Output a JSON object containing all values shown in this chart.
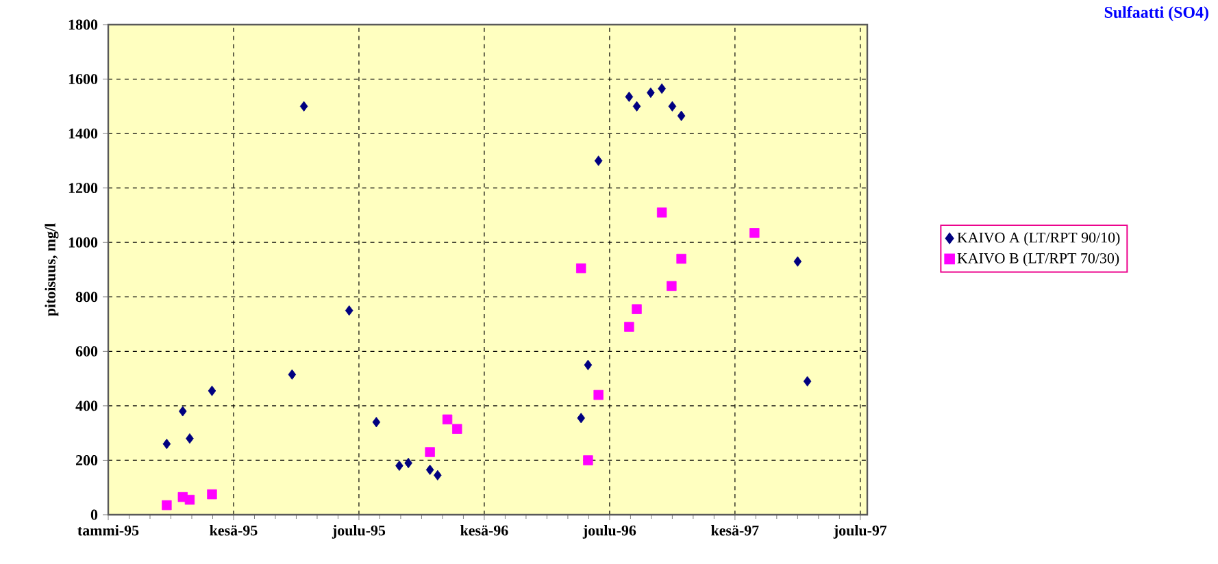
{
  "chart_data": {
    "type": "scatter",
    "title": "Sulfaatti (SO4)",
    "ylabel": "pitoisuus, mg/l",
    "xlim": [
      "1995-01-01",
      "1997-12-26"
    ],
    "xticks": [
      {
        "value": "1995-01-01",
        "label": "tammi-95"
      },
      {
        "value": "1995-06-30",
        "label": "kesä-95"
      },
      {
        "value": "1995-12-27",
        "label": "joulu-95"
      },
      {
        "value": "1996-06-24",
        "label": "kesä-96"
      },
      {
        "value": "1996-12-21",
        "label": "joulu-96"
      },
      {
        "value": "1997-06-19",
        "label": "kesä-97"
      },
      {
        "value": "1997-12-16",
        "label": "joulu-97"
      }
    ],
    "ylim": [
      0,
      1800
    ],
    "yticks": [
      0,
      200,
      400,
      600,
      800,
      1000,
      1200,
      1400,
      1600,
      1800
    ],
    "grid": true,
    "legend": "right",
    "series": [
      {
        "name": "KAIVO A (LT/RPT 90/10)",
        "color": "#000080",
        "marker": "diamond",
        "x": [
          "1995-03-26",
          "1995-04-18",
          "1995-04-28",
          "1995-05-30",
          "1995-09-22",
          "1995-10-09",
          "1995-12-13",
          "1996-01-21",
          "1996-02-23",
          "1996-03-07",
          "1996-04-07",
          "1996-04-18",
          "1996-11-10",
          "1996-11-20",
          "1996-12-05",
          "1997-01-18",
          "1997-01-29",
          "1997-02-18",
          "1997-03-06",
          "1997-03-21",
          "1997-04-03",
          "1997-09-17",
          "1997-10-01"
        ],
        "values": [
          260,
          380,
          280,
          455,
          515,
          1500,
          750,
          340,
          180,
          190,
          165,
          145,
          355,
          550,
          1300,
          1535,
          1500,
          1550,
          1565,
          1500,
          1465,
          930,
          490
        ]
      },
      {
        "name": "KAIVO B (LT/RPT 70/30)",
        "color": "#ff00ff",
        "marker": "square",
        "x": [
          "1995-03-26",
          "1995-04-18",
          "1995-04-28",
          "1995-05-30",
          "1996-04-07",
          "1996-05-02",
          "1996-05-16",
          "1996-11-10",
          "1996-11-20",
          "1996-12-05",
          "1997-01-18",
          "1997-01-29",
          "1997-03-06",
          "1997-03-20",
          "1997-04-03",
          "1997-07-17"
        ],
        "values": [
          35,
          65,
          55,
          75,
          230,
          350,
          315,
          905,
          200,
          440,
          690,
          755,
          1110,
          840,
          940,
          1035
        ]
      }
    ]
  }
}
